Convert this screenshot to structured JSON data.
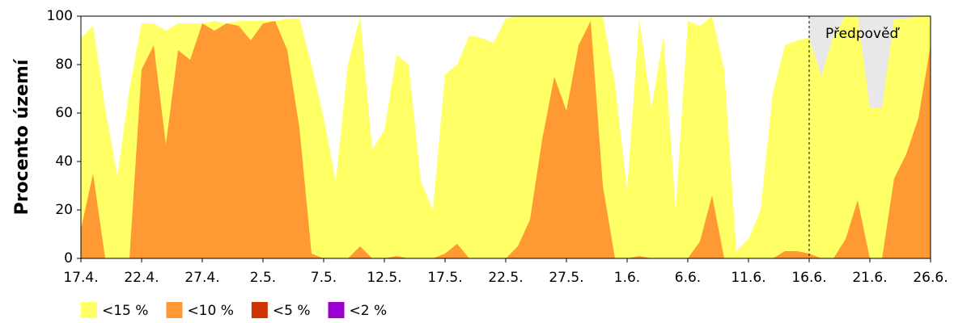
{
  "chart_data": {
    "type": "area",
    "y_label": "Procento území",
    "categories": [
      "17.4.",
      null,
      null,
      null,
      null,
      "22.4.",
      null,
      null,
      null,
      null,
      "27.4.",
      null,
      null,
      null,
      null,
      "2.5.",
      null,
      null,
      null,
      null,
      "7.5.",
      null,
      null,
      null,
      null,
      "12.5.",
      null,
      null,
      null,
      null,
      "17.5.",
      null,
      null,
      null,
      null,
      "22.5.",
      null,
      null,
      null,
      null,
      "27.5.",
      null,
      null,
      null,
      null,
      "1.6.",
      null,
      null,
      null,
      null,
      "6.6.",
      null,
      null,
      null,
      null,
      "11.6.",
      null,
      null,
      null,
      null,
      "16.6.",
      null,
      null,
      null,
      null,
      "21.6.",
      null,
      null,
      null,
      null,
      "26.6."
    ],
    "series": [
      {
        "name": "<15 %",
        "color": "#ffff66",
        "values": [
          91,
          96,
          62,
          34,
          70,
          97,
          97,
          94,
          97,
          97,
          97,
          98,
          97,
          98,
          98,
          98,
          98,
          99,
          99,
          80,
          58,
          32,
          80,
          100,
          45,
          53,
          84,
          80,
          32,
          20,
          76,
          80,
          92,
          91,
          89,
          99,
          100,
          100,
          100,
          100,
          100,
          100,
          100,
          100,
          72,
          28,
          99,
          62,
          92,
          20,
          98,
          96,
          100,
          78,
          3,
          8,
          20,
          68,
          88,
          90,
          91,
          75,
          92,
          100,
          100,
          62,
          62,
          99,
          99,
          100,
          100
        ]
      },
      {
        "name": "<10 %",
        "color": "#ff9933",
        "values": [
          12,
          35,
          0,
          0,
          0,
          78,
          88,
          47,
          86,
          82,
          97,
          94,
          97,
          96,
          90,
          97,
          98,
          86,
          54,
          2,
          0,
          0,
          0,
          5,
          0,
          0,
          1,
          0,
          0,
          0,
          2,
          6,
          0,
          0,
          0,
          0,
          5,
          16,
          49,
          75,
          61,
          88,
          98,
          30,
          0,
          0,
          1,
          0,
          0,
          0,
          0,
          7,
          26,
          0,
          0,
          0,
          0,
          0,
          3,
          3,
          2,
          0,
          0,
          8,
          24,
          0,
          0,
          33,
          43,
          58,
          88
        ]
      },
      {
        "name": "<5 %",
        "color": "#cc3300",
        "values": [
          0,
          0,
          0,
          0,
          0,
          0,
          0,
          0,
          0,
          0,
          0,
          0,
          0,
          0,
          0,
          0,
          0,
          0,
          0,
          0,
          0,
          0,
          0,
          0,
          0,
          0,
          0,
          0,
          0,
          0,
          0,
          0,
          0,
          0,
          0,
          0,
          0,
          0,
          0,
          0,
          0,
          0,
          0,
          0,
          0,
          0,
          0,
          0,
          0,
          0,
          0,
          0,
          0,
          0,
          0,
          0,
          0,
          0,
          0,
          0,
          0,
          0,
          0,
          0,
          0,
          0,
          0,
          0,
          0,
          0,
          0
        ]
      },
      {
        "name": "<2 %",
        "color": "#9900cc",
        "values": [
          0,
          0,
          0,
          0,
          0,
          0,
          0,
          0,
          0,
          0,
          0,
          0,
          0,
          0,
          0,
          0,
          0,
          0,
          0,
          0,
          0,
          0,
          0,
          0,
          0,
          0,
          0,
          0,
          0,
          0,
          0,
          0,
          0,
          0,
          0,
          0,
          0,
          0,
          0,
          0,
          0,
          0,
          0,
          0,
          0,
          0,
          0,
          0,
          0,
          0,
          0,
          0,
          0,
          0,
          0,
          0,
          0,
          0,
          0,
          0,
          0,
          0,
          0,
          0,
          0,
          0,
          0,
          0,
          0,
          0,
          0
        ]
      }
    ],
    "forecast_label": "Předpověď",
    "forecast_from": "16.6.",
    "forecast_color": "#e8e8e8",
    "ylim": [
      0,
      100
    ],
    "yticks": [
      0,
      20,
      40,
      60,
      80,
      100
    ]
  }
}
